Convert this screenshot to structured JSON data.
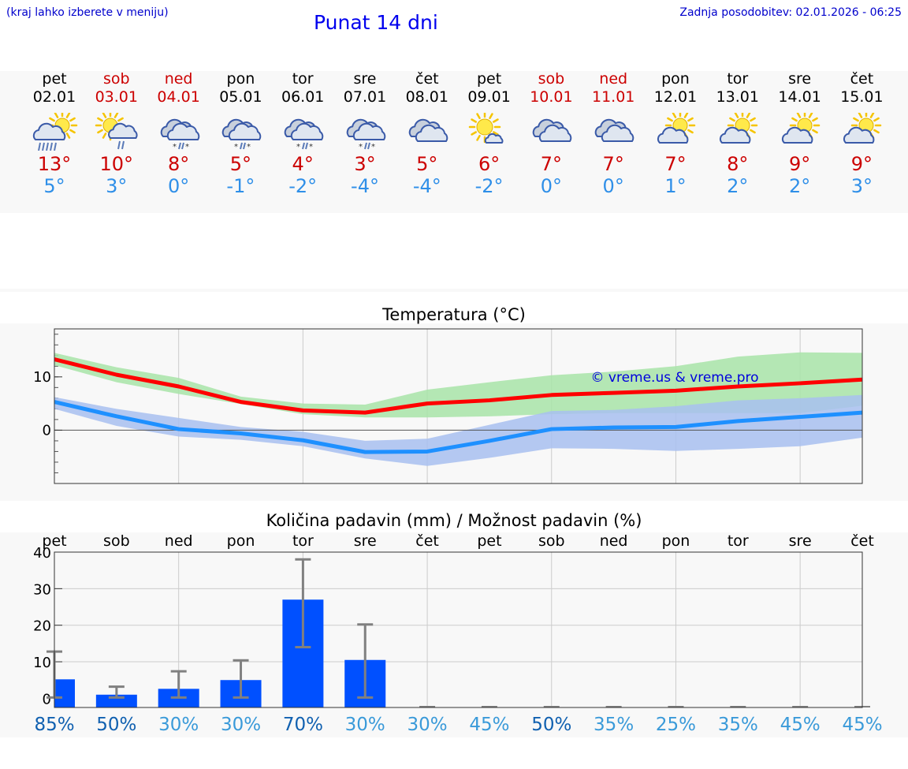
{
  "header": {
    "left_note": "(kraj lahko izberete v meniju)",
    "title": "Punat 14 dni",
    "updated": "Zadnja posodobitev: 02.01.2026 - 06:25"
  },
  "days": [
    {
      "name": "pet",
      "date": "02.01",
      "weekend": false,
      "icon": "sun-cloud-rain-icon",
      "tmax": "13°",
      "tmin": "5°"
    },
    {
      "name": "sob",
      "date": "03.01",
      "weekend": true,
      "icon": "sun-cloud-light-rain-icon",
      "tmax": "10°",
      "tmin": "3°"
    },
    {
      "name": "ned",
      "date": "04.01",
      "weekend": true,
      "icon": "cloud-sleet-icon",
      "tmax": "8°",
      "tmin": "0°"
    },
    {
      "name": "pon",
      "date": "05.01",
      "weekend": false,
      "icon": "cloud-sleet-icon",
      "tmax": "5°",
      "tmin": "-1°"
    },
    {
      "name": "tor",
      "date": "06.01",
      "weekend": false,
      "icon": "cloud-sleet-icon",
      "tmax": "4°",
      "tmin": "-2°"
    },
    {
      "name": "sre",
      "date": "07.01",
      "weekend": false,
      "icon": "cloud-sleet-icon",
      "tmax": "3°",
      "tmin": "-4°"
    },
    {
      "name": "čet",
      "date": "08.01",
      "weekend": false,
      "icon": "cloudy-icon",
      "tmax": "5°",
      "tmin": "-4°"
    },
    {
      "name": "pet",
      "date": "09.01",
      "weekend": false,
      "icon": "sun-small-cloud-icon",
      "tmax": "6°",
      "tmin": "-2°"
    },
    {
      "name": "sob",
      "date": "10.01",
      "weekend": true,
      "icon": "cloudy-icon",
      "tmax": "7°",
      "tmin": "0°"
    },
    {
      "name": "ned",
      "date": "11.01",
      "weekend": true,
      "icon": "cloudy-icon",
      "tmax": "7°",
      "tmin": "0°"
    },
    {
      "name": "pon",
      "date": "12.01",
      "weekend": false,
      "icon": "partly-cloudy-icon",
      "tmax": "7°",
      "tmin": "1°"
    },
    {
      "name": "tor",
      "date": "13.01",
      "weekend": false,
      "icon": "partly-cloudy-icon",
      "tmax": "8°",
      "tmin": "2°"
    },
    {
      "name": "sre",
      "date": "14.01",
      "weekend": false,
      "icon": "partly-cloudy-icon",
      "tmax": "9°",
      "tmin": "2°"
    },
    {
      "name": "čet",
      "date": "15.01",
      "weekend": false,
      "icon": "partly-cloudy-icon",
      "tmax": "9°",
      "tmin": "3°"
    }
  ],
  "colors": {
    "weekend": "#cc0000",
    "tmax_line": "#ff0000",
    "tmin_line": "#1e90ff",
    "tmax_band": "#a8e4a8",
    "tmin_band": "#a8c0f0",
    "overlap_band": "#7fc4a8",
    "precip_bar": "#0050ff",
    "error_bar": "#808080",
    "prob_dark": "#1060b0",
    "prob_light": "#3a9ad9"
  },
  "chart_data": [
    {
      "type": "line",
      "title": "Temperatura (°C)",
      "watermark": "© vreme.us & vreme.pro",
      "ylim": [
        -10,
        19
      ],
      "yticks": [
        0,
        10
      ],
      "grid": true,
      "series": [
        {
          "name": "tmax",
          "values": [
            13.3,
            10.4,
            8.2,
            5.3,
            3.7,
            3.3,
            5.0,
            5.6,
            6.6,
            7.0,
            7.4,
            8.2,
            8.8,
            9.5
          ],
          "band_low": [
            12.2,
            9.0,
            6.8,
            4.9,
            3.0,
            2.4,
            2.4,
            2.6,
            3.0,
            3.2,
            3.2,
            3.2,
            3.2,
            4.6
          ],
          "band_high": [
            14.5,
            11.8,
            9.8,
            6.3,
            5.0,
            4.8,
            7.6,
            9.0,
            10.3,
            11.0,
            12.0,
            13.8,
            14.6,
            14.5
          ]
        },
        {
          "name": "tmin",
          "values": [
            5.3,
            2.6,
            0.2,
            -0.6,
            -1.9,
            -4.1,
            -4.0,
            -2.0,
            0.2,
            0.5,
            0.6,
            1.7,
            2.5,
            3.3
          ],
          "band_low": [
            4.0,
            0.8,
            -1.2,
            -1.8,
            -3.0,
            -5.3,
            -6.7,
            -5.2,
            -3.4,
            -3.5,
            -3.9,
            -3.5,
            -3.0,
            -1.4
          ],
          "band_high": [
            6.2,
            4.0,
            2.3,
            0.6,
            -0.3,
            -2.0,
            -1.6,
            1.0,
            3.6,
            3.8,
            4.5,
            5.6,
            6.0,
            6.6
          ]
        }
      ]
    },
    {
      "type": "bar",
      "title": "Količina padavin (mm) / Možnost padavin (%)",
      "categories": [
        "pet",
        "sob",
        "ned",
        "pon",
        "tor",
        "sre",
        "čet",
        "pet",
        "sob",
        "ned",
        "pon",
        "tor",
        "sre",
        "čet"
      ],
      "values": [
        5.2,
        1.0,
        2.6,
        5.0,
        27.0,
        10.5,
        0,
        0,
        0,
        0,
        0,
        0,
        0,
        0
      ],
      "err_low": [
        0,
        0,
        0,
        0,
        13.8,
        0,
        0,
        0,
        0,
        0,
        0,
        0,
        0,
        0
      ],
      "err_high": [
        12.8,
        3.2,
        7.4,
        10.4,
        38.0,
        20.2,
        0,
        0,
        0,
        0,
        0,
        0,
        0,
        0
      ],
      "ylim": [
        -2.5,
        40
      ],
      "yticks": [
        0,
        10,
        20,
        30,
        40
      ],
      "probabilities": [
        "85%",
        "50%",
        "30%",
        "30%",
        "70%",
        "30%",
        "30%",
        "45%",
        "50%",
        "35%",
        "25%",
        "35%",
        "45%",
        "45%"
      ],
      "prob_dark": [
        true,
        true,
        false,
        false,
        true,
        false,
        false,
        false,
        true,
        false,
        false,
        false,
        false,
        false
      ]
    }
  ]
}
